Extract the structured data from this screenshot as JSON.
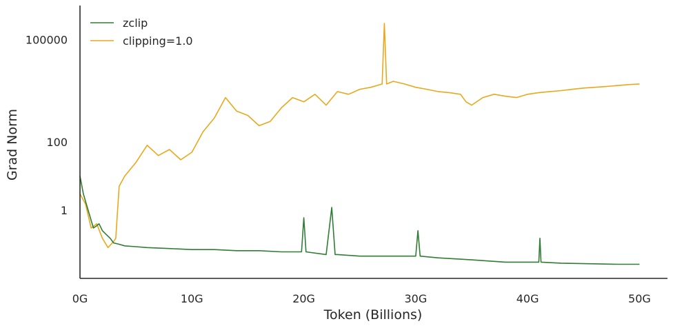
{
  "chart_data": {
    "type": "line",
    "xlabel": "Token (Billions)",
    "ylabel": "Grad Norm",
    "x_unit": "G",
    "xlim": [
      0,
      52.5
    ],
    "xticks": [
      0,
      10,
      20,
      30,
      40,
      50
    ],
    "x_tick_labels": [
      "0G",
      "10G",
      "20G",
      "30G",
      "40G",
      "50G"
    ],
    "y_scale": "log",
    "ylim": [
      0.01,
      1000000
    ],
    "yticks": [
      1,
      100,
      100000
    ],
    "y_tick_labels": [
      "1",
      "100",
      "100000"
    ],
    "grid": false,
    "legend_position": "top-left",
    "series": [
      {
        "name": "zclip",
        "color": "#2e7d32",
        "x": [
          0,
          0.3,
          0.6,
          1,
          1.2,
          1.5,
          1.7,
          2,
          2.3,
          2.7,
          3,
          3.5,
          4,
          5,
          6,
          8,
          10,
          12,
          14,
          16,
          18,
          19.8,
          20,
          20.2,
          22,
          22.5,
          22.8,
          23,
          25,
          27,
          30,
          30.2,
          30.4,
          32,
          35,
          38,
          40,
          41,
          41.1,
          41.2,
          43,
          45,
          48,
          50
        ],
        "y": [
          10,
          3,
          1.4,
          0.5,
          0.3,
          0.35,
          0.4,
          0.25,
          0.2,
          0.15,
          0.11,
          0.1,
          0.09,
          0.085,
          0.08,
          0.075,
          0.07,
          0.07,
          0.065,
          0.065,
          0.06,
          0.06,
          0.6,
          0.06,
          0.05,
          1.2,
          0.05,
          0.05,
          0.045,
          0.045,
          0.045,
          0.25,
          0.045,
          0.04,
          0.035,
          0.03,
          0.03,
          0.03,
          0.15,
          0.03,
          0.028,
          0.027,
          0.026,
          0.026
        ]
      },
      {
        "name": "clipping=1.0",
        "color": "#e8a81b",
        "x": [
          0,
          0.5,
          1,
          1.5,
          2,
          2.5,
          3,
          3.2,
          3.5,
          4,
          5,
          6,
          7,
          8,
          9,
          10,
          11,
          12,
          12.5,
          13,
          14,
          15,
          16,
          17,
          18,
          19,
          20,
          21,
          22,
          23,
          24,
          25,
          26,
          27,
          27.2,
          27.4,
          28,
          29,
          30,
          31,
          32,
          33,
          34,
          34.5,
          35,
          36,
          37,
          38,
          39,
          40,
          41,
          42,
          43,
          44,
          45,
          46,
          47,
          48,
          49,
          50
        ],
        "y": [
          3,
          1.5,
          0.3,
          0.4,
          0.15,
          0.08,
          0.12,
          0.15,
          5,
          10,
          25,
          80,
          40,
          60,
          30,
          50,
          200,
          500,
          1000,
          2000,
          800,
          600,
          300,
          400,
          1000,
          2000,
          1500,
          2500,
          1200,
          3000,
          2500,
          3500,
          4000,
          5000,
          300000,
          5000,
          6000,
          5000,
          4000,
          3500,
          3000,
          2800,
          2500,
          1500,
          1200,
          2000,
          2500,
          2200,
          2000,
          2500,
          2800,
          3000,
          3200,
          3500,
          3800,
          4000,
          4200,
          4500,
          4800,
          5000
        ]
      }
    ]
  }
}
